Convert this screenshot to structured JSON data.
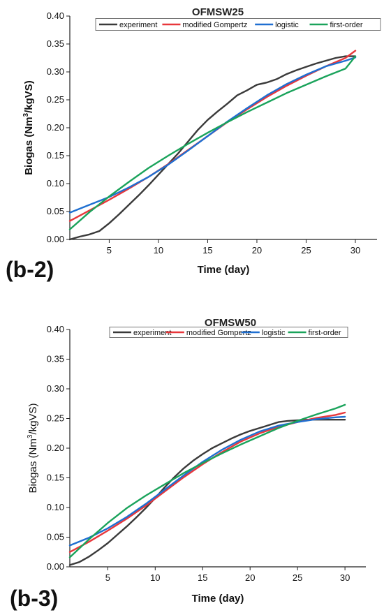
{
  "chart_data": [
    {
      "type": "line",
      "panel_label": "(b-2)",
      "title": "OFMSW25",
      "xlabel": "Time (day)",
      "ylabel_main": "Biogas (Nm",
      "ylabel_sup": "3",
      "ylabel_end": "/kgVS)",
      "ylabel_bold": true,
      "xlim": [
        1,
        32.2
      ],
      "ylim": [
        0,
        0.4
      ],
      "xticks": [
        5,
        10,
        15,
        20,
        25,
        30
      ],
      "yticks": [
        "0.00",
        "0.05",
        "0.10",
        "0.15",
        "0.20",
        "0.25",
        "0.30",
        "0.35",
        "0.40"
      ],
      "grid": false,
      "legend_position": "top-right",
      "series": [
        {
          "name": "experiment",
          "color": "#3a3a3a",
          "x": [
            1,
            2,
            3,
            4,
            5,
            6,
            7,
            8,
            9,
            10,
            11,
            12,
            13,
            14,
            15,
            16,
            17,
            18,
            19,
            20,
            21,
            22,
            23,
            24,
            25,
            26,
            27,
            28,
            29,
            30
          ],
          "y": [
            0.0,
            0.005,
            0.009,
            0.015,
            0.029,
            0.045,
            0.062,
            0.079,
            0.097,
            0.116,
            0.135,
            0.154,
            0.175,
            0.196,
            0.214,
            0.229,
            0.243,
            0.258,
            0.267,
            0.277,
            0.281,
            0.287,
            0.296,
            0.303,
            0.309,
            0.315,
            0.32,
            0.325,
            0.328,
            0.328
          ]
        },
        {
          "name": "modified Gompertz",
          "color": "#e8373b",
          "x": [
            1,
            3,
            5,
            7,
            9,
            11,
            13,
            15,
            17,
            19,
            21,
            23,
            25,
            27,
            29,
            30
          ],
          "y": [
            0.033,
            0.052,
            0.071,
            0.091,
            0.112,
            0.135,
            0.16,
            0.185,
            0.21,
            0.233,
            0.255,
            0.275,
            0.293,
            0.31,
            0.325,
            0.338
          ]
        },
        {
          "name": "logistic",
          "color": "#1f6fd1",
          "x": [
            1,
            3,
            5,
            7,
            9,
            11,
            13,
            15,
            17,
            19,
            21,
            23,
            25,
            27,
            29,
            30
          ],
          "y": [
            0.048,
            0.062,
            0.076,
            0.093,
            0.112,
            0.134,
            0.159,
            0.185,
            0.211,
            0.235,
            0.258,
            0.278,
            0.295,
            0.31,
            0.32,
            0.326
          ]
        },
        {
          "name": "first-order",
          "color": "#1aa35b",
          "x": [
            1,
            3,
            5,
            7,
            9,
            11,
            13,
            15,
            17,
            19,
            21,
            23,
            25,
            27,
            29,
            30
          ],
          "y": [
            0.018,
            0.049,
            0.077,
            0.103,
            0.128,
            0.15,
            0.171,
            0.191,
            0.21,
            0.228,
            0.245,
            0.262,
            0.277,
            0.292,
            0.306,
            0.328
          ]
        }
      ]
    },
    {
      "type": "line",
      "panel_label": "(b-3)",
      "title": "OFMSW50",
      "xlabel": "Time (day)",
      "ylabel_main": "Biogas (Nm",
      "ylabel_sup": "3",
      "ylabel_end": "/kgVS)",
      "ylabel_bold": false,
      "xlim": [
        1,
        32.2
      ],
      "ylim": [
        0,
        0.4
      ],
      "xticks": [
        5,
        10,
        15,
        20,
        25,
        30
      ],
      "yticks": [
        "0.00",
        "0.05",
        "0.10",
        "0.15",
        "0.20",
        "0.25",
        "0.30",
        "0.35",
        "0.40"
      ],
      "grid": false,
      "legend_position": "top-right",
      "series": [
        {
          "name": "experiment",
          "color": "#3a3a3a",
          "x": [
            1,
            2,
            3,
            4,
            5,
            6,
            7,
            8,
            9,
            10,
            11,
            12,
            13,
            14,
            15,
            16,
            17,
            18,
            19,
            20,
            21,
            22,
            23,
            24,
            25,
            26,
            27,
            28,
            29,
            30
          ],
          "y": [
            0.003,
            0.008,
            0.017,
            0.028,
            0.04,
            0.054,
            0.068,
            0.083,
            0.099,
            0.116,
            0.134,
            0.151,
            0.166,
            0.179,
            0.19,
            0.2,
            0.208,
            0.216,
            0.223,
            0.229,
            0.234,
            0.239,
            0.244,
            0.246,
            0.247,
            0.248,
            0.248,
            0.248,
            0.248,
            0.248
          ]
        },
        {
          "name": "modified Gompertz",
          "color": "#e8373b",
          "x": [
            1,
            3,
            5,
            7,
            9,
            11,
            13,
            15,
            17,
            19,
            21,
            23,
            25,
            27,
            29,
            30
          ],
          "y": [
            0.025,
            0.042,
            0.061,
            0.081,
            0.103,
            0.127,
            0.151,
            0.173,
            0.193,
            0.211,
            0.225,
            0.236,
            0.244,
            0.251,
            0.256,
            0.26
          ]
        },
        {
          "name": "logistic",
          "color": "#1f6fd1",
          "x": [
            1,
            3,
            5,
            7,
            9,
            11,
            13,
            15,
            17,
            19,
            21,
            23,
            25,
            27,
            29,
            30
          ],
          "y": [
            0.036,
            0.049,
            0.065,
            0.084,
            0.106,
            0.13,
            0.154,
            0.177,
            0.197,
            0.214,
            0.228,
            0.238,
            0.244,
            0.249,
            0.252,
            0.253
          ]
        },
        {
          "name": "first-order",
          "color": "#1aa35b",
          "x": [
            1,
            3,
            5,
            7,
            9,
            11,
            13,
            15,
            17,
            19,
            21,
            23,
            25,
            27,
            29,
            30
          ],
          "y": [
            0.016,
            0.046,
            0.074,
            0.099,
            0.12,
            0.139,
            0.158,
            0.175,
            0.191,
            0.206,
            0.22,
            0.234,
            0.246,
            0.257,
            0.267,
            0.273
          ]
        }
      ]
    }
  ]
}
